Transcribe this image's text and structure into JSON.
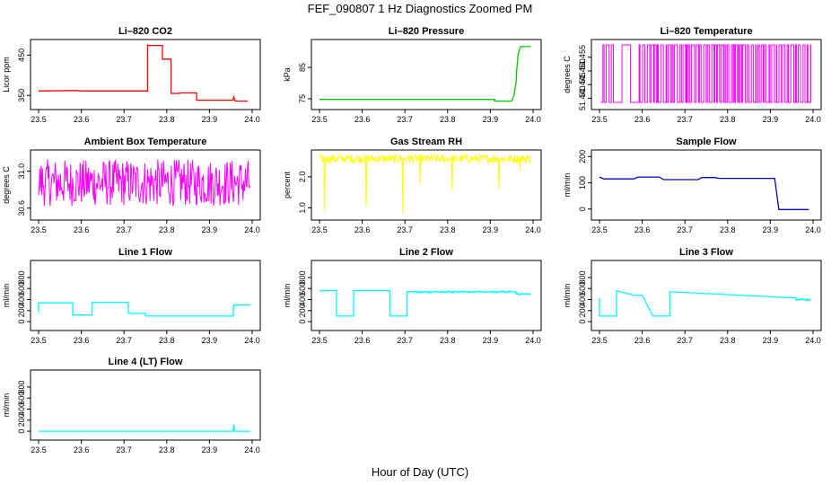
{
  "figure": {
    "title": "FEF_090807  1 Hz Diagnostics Zoomed PM",
    "xlabel": "Hour of Day (UTC)"
  },
  "chart_data": [
    {
      "type": "line",
      "title": "Li–820 CO2",
      "xlabel": "",
      "ylabel": "Licor ppm",
      "color": "#ff0000",
      "xlim": [
        23.5,
        24.0
      ],
      "ylim": [
        326,
        482
      ],
      "xticks": [
        "23.5",
        "23.6",
        "23.7",
        "23.8",
        "23.9",
        "24.0"
      ],
      "yticks": [
        "350",
        "450"
      ],
      "ytick_values": [
        350,
        450
      ],
      "series": [
        {
          "x": [
            23.5,
            23.59,
            23.6,
            23.755,
            23.755,
            23.757,
            23.79,
            23.79,
            23.81,
            23.81,
            23.83,
            23.83,
            23.84,
            23.87,
            23.87,
            23.955,
            23.957,
            23.96,
            23.99
          ],
          "y": [
            361,
            362,
            361,
            361,
            475,
            474,
            474,
            440,
            440,
            355,
            355,
            356,
            356,
            356,
            338,
            338,
            346,
            336,
            336
          ]
        }
      ]
    },
    {
      "type": "line",
      "title": "Li–820 Pressure",
      "xlabel": "",
      "ylabel": "kPa",
      "color": "#00cc00",
      "xlim": [
        23.5,
        24.0
      ],
      "ylim": [
        73.0,
        93.0
      ],
      "xticks": [
        "23.5",
        "23.6",
        "23.7",
        "23.8",
        "23.9",
        "24.0"
      ],
      "yticks": [
        "75",
        "85"
      ],
      "ytick_values": [
        75,
        85
      ],
      "series": [
        {
          "x": [
            23.5,
            23.7,
            23.91,
            23.91,
            23.95,
            23.955,
            23.96,
            23.962,
            23.965,
            23.97,
            23.975,
            23.98,
            23.99,
            23.995
          ],
          "y": [
            74.8,
            74.8,
            74.8,
            74.3,
            74.3,
            76.0,
            80.0,
            84.5,
            89.0,
            91.5,
            91.7,
            91.6,
            91.6,
            91.6
          ]
        }
      ]
    },
    {
      "type": "line",
      "title": "Li–820 Temperature",
      "xlabel": "",
      "ylabel": "degrees C",
      "color": "#ff00ff",
      "xlim": [
        23.5,
        24.0
      ],
      "ylim": [
        51.4375,
        51.4605
      ],
      "xticks": [
        "23.5",
        "23.6",
        "23.7",
        "23.8",
        "23.9",
        "24.0"
      ],
      "yticks": [
        "51.440",
        "51.445",
        "51.450",
        "51.455"
      ],
      "ytick_values": [
        51.44,
        51.445,
        51.45,
        51.455
      ],
      "series": [
        {
          "name": "",
          "x": [],
          "y": []
        }
      ],
      "low": 51.4385,
      "high": 51.4595
    },
    {
      "type": "line",
      "title": "Ambient Box Temperature",
      "xlabel": "",
      "ylabel": "degrees C",
      "color": "#ff00ff",
      "xlim": [
        23.5,
        24.0
      ],
      "ylim": [
        30.52,
        31.2
      ],
      "xticks": [
        "23.5",
        "23.6",
        "23.7",
        "23.8",
        "23.9",
        "24.0"
      ],
      "yticks": [
        "30.6",
        "31.0"
      ],
      "ytick_values": [
        30.6,
        31.0
      ],
      "series": [
        {
          "name": "",
          "x": [],
          "y": []
        }
      ],
      "band": [
        30.62,
        31.13
      ]
    },
    {
      "type": "line",
      "title": "Gas Stream RH",
      "xlabel": "",
      "ylabel": "percent",
      "color": "#ffff00",
      "xlim": [
        23.5,
        24.0
      ],
      "ylim": [
        0.75,
        2.78
      ],
      "xticks": [
        "23.5",
        "23.6",
        "23.7",
        "23.8",
        "23.9",
        "24.0"
      ],
      "yticks": [
        "1.0",
        "2.0"
      ],
      "ytick_values": [
        1.0,
        2.0
      ],
      "series": [
        {
          "name": "",
          "x": [],
          "y": []
        }
      ],
      "band": [
        2.45,
        2.72
      ],
      "spikes": [
        [
          23.512,
          0.9
        ],
        [
          23.61,
          1.05
        ],
        [
          23.695,
          0.8
        ],
        [
          23.735,
          1.8
        ],
        [
          23.81,
          1.55
        ],
        [
          23.92,
          1.6
        ],
        [
          23.97,
          2.25
        ]
      ]
    },
    {
      "type": "line",
      "title": "Sample Flow",
      "xlabel": "",
      "ylabel": "ml/min",
      "color": "#0000cc",
      "xlim": [
        23.5,
        24.0
      ],
      "ylim": [
        -25,
        215
      ],
      "xticks": [
        "23.5",
        "23.6",
        "23.7",
        "23.8",
        "23.9",
        "24.0"
      ],
      "yticks": [
        "0",
        "100",
        "200"
      ],
      "ytick_values": [
        0,
        100,
        200
      ],
      "series": [
        {
          "x": [
            23.5,
            23.51,
            23.58,
            23.59,
            23.64,
            23.65,
            23.73,
            23.74,
            23.77,
            23.78,
            23.91,
            23.92,
            23.99
          ],
          "y": [
            122,
            115,
            115,
            122,
            122,
            112,
            112,
            120,
            120,
            117,
            117,
            -2,
            -2
          ]
        }
      ]
    },
    {
      "type": "line",
      "title": "Line 1 Flow",
      "xlabel": "",
      "ylabel": "ml/min",
      "color": "#00ffff",
      "xlim": [
        23.5,
        24.0
      ],
      "ylim": [
        -80,
        1060
      ],
      "xticks": [
        "23.5",
        "23.6",
        "23.7",
        "23.8",
        "23.9",
        "24.0"
      ],
      "yticks": [
        "0",
        "200",
        "400",
        "600",
        "800"
      ],
      "ytick_values": [
        0,
        200,
        400,
        600,
        800
      ],
      "series": [
        {
          "x": [
            23.5,
            23.5,
            23.58,
            23.58,
            23.625,
            23.625,
            23.71,
            23.71,
            23.75,
            23.75,
            23.955,
            23.957,
            23.995
          ],
          "y": [
            160,
            340,
            340,
            120,
            120,
            350,
            350,
            150,
            150,
            100,
            100,
            300,
            300
          ]
        }
      ]
    },
    {
      "type": "line",
      "title": "Line 2 Flow",
      "xlabel": "",
      "ylabel": "ml/min",
      "color": "#00ffff",
      "xlim": [
        23.5,
        24.0
      ],
      "ylim": [
        -80,
        1060
      ],
      "xticks": [
        "23.5",
        "23.6",
        "23.7",
        "23.8",
        "23.9",
        "24.0"
      ],
      "yticks": [
        "0",
        "200",
        "400",
        "600",
        "800"
      ],
      "ytick_values": [
        0,
        200,
        400,
        600,
        800
      ],
      "series": [
        {
          "x": [
            23.5,
            23.54,
            23.54,
            23.58,
            23.58,
            23.665,
            23.665,
            23.705,
            23.705,
            23.96,
            23.96,
            23.995
          ],
          "y": [
            560,
            560,
            100,
            100,
            560,
            560,
            100,
            100,
            540,
            540,
            500,
            500
          ]
        }
      ]
    },
    {
      "type": "line",
      "title": "Line 3 Flow",
      "xlabel": "",
      "ylabel": "ml/min",
      "color": "#00ffff",
      "xlim": [
        23.5,
        24.0
      ],
      "ylim": [
        -80,
        1060
      ],
      "xticks": [
        "23.5",
        "23.6",
        "23.7",
        "23.8",
        "23.9",
        "24.0"
      ],
      "yticks": [
        "0",
        "200",
        "400",
        "600",
        "800"
      ],
      "ytick_values": [
        0,
        200,
        400,
        600,
        800
      ],
      "series": [
        {
          "x": [
            23.5,
            23.5,
            23.54,
            23.54,
            23.58,
            23.6,
            23.625,
            23.625,
            23.665,
            23.665,
            23.96,
            23.96,
            23.995
          ],
          "y": [
            420,
            100,
            100,
            560,
            480,
            480,
            100,
            100,
            100,
            540,
            430,
            400,
            400
          ]
        }
      ]
    },
    {
      "type": "line",
      "title": "Line 4 (LT) Flow",
      "xlabel": "",
      "ylabel": "ml/min",
      "color": "#00ffff",
      "xlim": [
        23.5,
        24.0
      ],
      "ylim": [
        -80,
        1060
      ],
      "xticks": [
        "23.5",
        "23.6",
        "23.7",
        "23.8",
        "23.9",
        "24.0"
      ],
      "yticks": [
        "0",
        "200",
        "400",
        "600",
        "800"
      ],
      "ytick_values": [
        0,
        200,
        400,
        600,
        800
      ],
      "series": [
        {
          "x": [
            23.5,
            23.955,
            23.957,
            23.959,
            23.995
          ],
          "y": [
            0,
            0,
            120,
            0,
            0
          ]
        }
      ]
    }
  ]
}
